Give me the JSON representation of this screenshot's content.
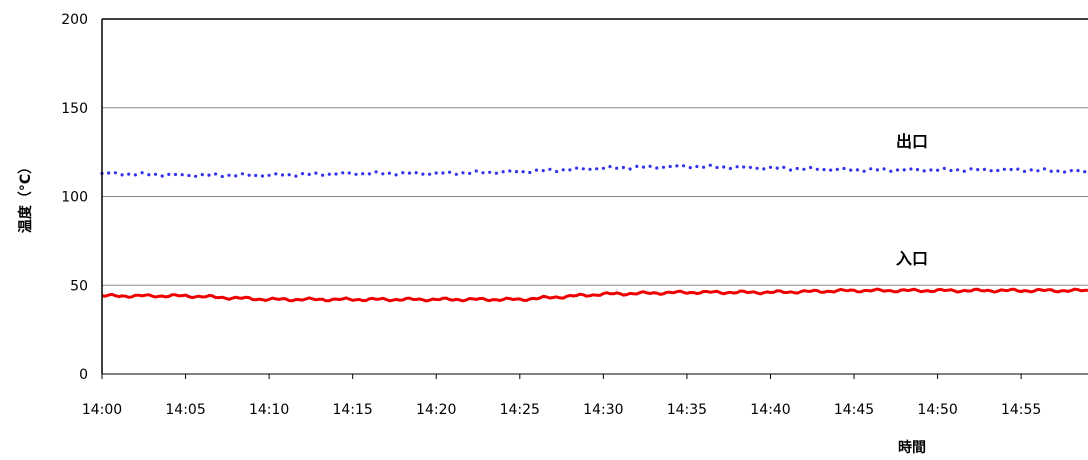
{
  "chart_data": {
    "type": "line",
    "xlabel": "時間",
    "ylabel": "温度（°C）",
    "ylim": [
      0,
      200
    ],
    "yticks": [
      0,
      50,
      100,
      150,
      200
    ],
    "xlim": [
      "14:00",
      "14:59"
    ],
    "xticks": [
      "14:00",
      "14:05",
      "14:10",
      "14:15",
      "14:20",
      "14:25",
      "14:30",
      "14:35",
      "14:40",
      "14:45",
      "14:50",
      "14:55"
    ],
    "grid": "horizontal",
    "annotations": [
      {
        "text": "出口",
        "series": "outlet"
      },
      {
        "text": "入口",
        "series": "inlet"
      }
    ],
    "series": [
      {
        "id": "outlet",
        "color": "#3333ee",
        "style": "dotted",
        "x": [
          "14:00",
          "14:05",
          "14:10",
          "14:15",
          "14:20",
          "14:25",
          "14:30",
          "14:35",
          "14:40",
          "14:45",
          "14:50",
          "14:55",
          "14:59"
        ],
        "values": [
          113,
          112,
          112,
          113,
          113,
          114,
          116,
          117,
          116,
          115,
          115,
          115,
          114
        ]
      },
      {
        "id": "inlet",
        "color": "#ee0000",
        "style": "solid",
        "x": [
          "14:00",
          "14:05",
          "14:10",
          "14:15",
          "14:20",
          "14:25",
          "14:30",
          "14:35",
          "14:40",
          "14:45",
          "14:50",
          "14:55",
          "14:59"
        ],
        "values": [
          44,
          44,
          42,
          42,
          42,
          42,
          45,
          46,
          46,
          47,
          47,
          47,
          47
        ]
      }
    ]
  }
}
